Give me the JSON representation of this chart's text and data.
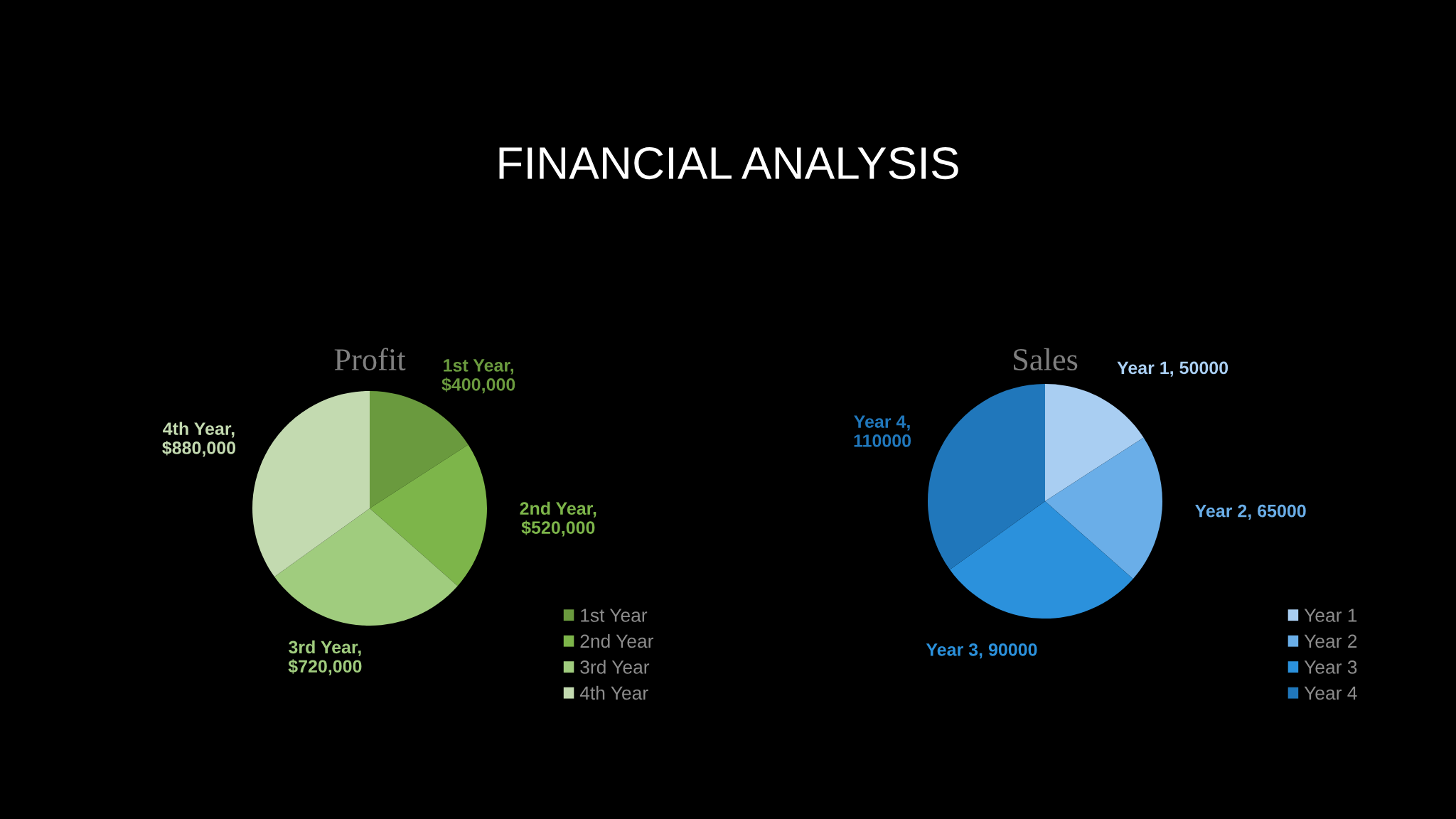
{
  "chart_data": [
    {
      "type": "other",
      "title": "FINANCIAL ANALYSIS"
    },
    {
      "type": "pie",
      "title": "Profit",
      "categories": [
        "1st Year",
        "2nd Year",
        "3rd Year",
        "4th Year"
      ],
      "values": [
        400000,
        520000,
        720000,
        880000
      ],
      "colors": [
        "#6a9a3e",
        "#7db54a",
        "#a0cc7e",
        "#c3dab0"
      ],
      "value_labels": [
        "1st Year,\n$400,000",
        "2nd Year,\n$520,000",
        "3rd Year,\n$720,000",
        "4th Year,\n$880,000"
      ],
      "legend": "bottom right"
    },
    {
      "type": "pie",
      "title": "Sales",
      "categories": [
        "Year 1",
        "Year 2",
        "Year 3",
        "Year 4"
      ],
      "values": [
        50000,
        65000,
        90000,
        110000
      ],
      "colors": [
        "#a9cef2",
        "#6aaee8",
        "#2b91dc",
        "#2077bb"
      ],
      "value_labels": [
        "Year 1, 50000",
        "Year 2, 65000",
        "Year 3, 90000",
        "Year 4,\n110000"
      ],
      "legend": "bottom right"
    }
  ]
}
